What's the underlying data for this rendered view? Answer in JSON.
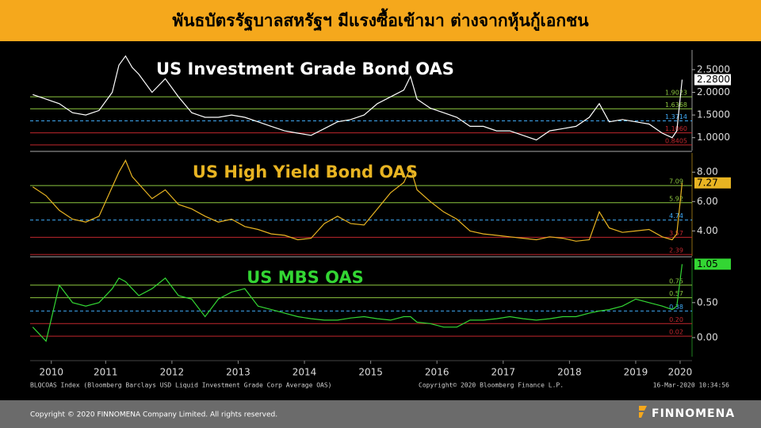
{
  "header": {
    "title": "พันธบัตรรัฐบาลสหรัฐฯ มีแรงซื้อเข้ามา ต่างจากหุ้นกู้เอกชน"
  },
  "chart_data": [
    {
      "type": "line",
      "title": "US Investment Grade Bond OAS",
      "color": "#ffffff",
      "x": [
        2010.4,
        2010.6,
        2010.8,
        2011.0,
        2011.2,
        2011.4,
        2011.6,
        2011.7,
        2011.8,
        2011.9,
        2012.0,
        2012.2,
        2012.4,
        2012.6,
        2012.8,
        2013.0,
        2013.2,
        2013.4,
        2013.6,
        2013.8,
        2014.0,
        2014.2,
        2014.4,
        2014.6,
        2014.8,
        2015.0,
        2015.2,
        2015.4,
        2015.6,
        2015.8,
        2016.0,
        2016.1,
        2016.2,
        2016.4,
        2016.6,
        2016.8,
        2017.0,
        2017.2,
        2017.4,
        2017.6,
        2017.8,
        2018.0,
        2018.2,
        2018.4,
        2018.6,
        2018.8,
        2018.95,
        2019.1,
        2019.3,
        2019.5,
        2019.7,
        2019.9,
        2020.05,
        2020.12,
        2020.2
      ],
      "values": [
        1.95,
        1.85,
        1.75,
        1.55,
        1.5,
        1.6,
        2.0,
        2.6,
        2.8,
        2.55,
        2.4,
        2.0,
        2.3,
        1.9,
        1.55,
        1.45,
        1.45,
        1.5,
        1.45,
        1.35,
        1.25,
        1.15,
        1.1,
        1.05,
        1.2,
        1.35,
        1.4,
        1.5,
        1.75,
        1.9,
        2.05,
        2.35,
        1.85,
        1.65,
        1.55,
        1.45,
        1.25,
        1.25,
        1.15,
        1.15,
        1.05,
        0.95,
        1.15,
        1.2,
        1.25,
        1.45,
        1.75,
        1.35,
        1.4,
        1.35,
        1.3,
        1.1,
        1.0,
        1.15,
        2.28
      ],
      "xlim": [
        2010.36,
        2020.35
      ],
      "ylim": [
        0.75,
        2.9
      ],
      "yticks": [
        {
          "value": 1.0,
          "label": "1.0000"
        },
        {
          "value": 1.5,
          "label": "1.5000"
        },
        {
          "value": 2.0,
          "label": "2.0000"
        },
        {
          "value": 2.5,
          "label": "2.5000"
        }
      ],
      "levels": [
        {
          "value": 1.9023,
          "label": "1.9023",
          "color": "#8cc63f"
        },
        {
          "value": 1.6368,
          "label": "1.6368",
          "color": "#8cc63f"
        },
        {
          "value": 1.3714,
          "label": "1.3714",
          "color": "#3fa9f5",
          "style": "dashed"
        },
        {
          "value": 1.106,
          "label": "1.1060",
          "color": "#c1272d"
        },
        {
          "value": 0.8405,
          "label": "0.8405",
          "color": "#c1272d"
        }
      ],
      "current": {
        "value": 2.28,
        "label": "2.2800"
      }
    },
    {
      "type": "line",
      "title": "US High Yield Bond OAS",
      "color": "#e8b422",
      "x": [
        2010.4,
        2010.6,
        2010.8,
        2011.0,
        2011.2,
        2011.4,
        2011.6,
        2011.7,
        2011.8,
        2011.9,
        2012.0,
        2012.2,
        2012.4,
        2012.6,
        2012.8,
        2013.0,
        2013.2,
        2013.4,
        2013.6,
        2013.8,
        2014.0,
        2014.2,
        2014.4,
        2014.6,
        2014.8,
        2015.0,
        2015.2,
        2015.4,
        2015.6,
        2015.8,
        2016.0,
        2016.1,
        2016.2,
        2016.4,
        2016.6,
        2016.8,
        2017.0,
        2017.2,
        2017.4,
        2017.6,
        2017.8,
        2018.0,
        2018.2,
        2018.4,
        2018.6,
        2018.8,
        2018.95,
        2019.1,
        2019.3,
        2019.5,
        2019.7,
        2019.9,
        2020.05,
        2020.12,
        2020.2
      ],
      "values": [
        7.0,
        6.4,
        5.4,
        4.8,
        4.6,
        5.0,
        7.0,
        8.0,
        8.8,
        7.7,
        7.2,
        6.2,
        6.8,
        5.8,
        5.5,
        5.0,
        4.6,
        4.8,
        4.3,
        4.1,
        3.8,
        3.7,
        3.4,
        3.5,
        4.5,
        5.0,
        4.5,
        4.4,
        5.5,
        6.6,
        7.3,
        8.3,
        6.8,
        6.0,
        5.3,
        4.8,
        4.0,
        3.8,
        3.7,
        3.6,
        3.5,
        3.4,
        3.6,
        3.5,
        3.3,
        3.4,
        5.3,
        4.2,
        3.9,
        4.0,
        4.1,
        3.6,
        3.4,
        3.8,
        7.27
      ],
      "xlim": [
        2010.36,
        2020.35
      ],
      "ylim": [
        2.4,
        9.2
      ],
      "yticks": [
        {
          "value": 4,
          "label": "4.00"
        },
        {
          "value": 6,
          "label": "6.00"
        },
        {
          "value": 8,
          "label": "8.00"
        }
      ],
      "levels": [
        {
          "value": 7.09,
          "label": "7.09",
          "color": "#8cc63f"
        },
        {
          "value": 5.92,
          "label": "5.92",
          "color": "#8cc63f"
        },
        {
          "value": 4.74,
          "label": "4.74",
          "color": "#3fa9f5",
          "style": "dashed"
        },
        {
          "value": 3.57,
          "label": "3.57",
          "color": "#c1272d"
        },
        {
          "value": 2.39,
          "label": "2.39",
          "color": "#c1272d"
        }
      ],
      "current": {
        "value": 7.27,
        "label": "7.27"
      }
    },
    {
      "type": "line",
      "title": "US MBS OAS",
      "color": "#33d633",
      "x": [
        2010.4,
        2010.6,
        2010.8,
        2011.0,
        2011.2,
        2011.4,
        2011.6,
        2011.7,
        2011.8,
        2011.9,
        2012.0,
        2012.2,
        2012.4,
        2012.6,
        2012.8,
        2013.0,
        2013.2,
        2013.4,
        2013.6,
        2013.8,
        2014.0,
        2014.2,
        2014.4,
        2014.6,
        2014.8,
        2015.0,
        2015.2,
        2015.4,
        2015.6,
        2015.8,
        2016.0,
        2016.1,
        2016.2,
        2016.4,
        2016.6,
        2016.8,
        2017.0,
        2017.2,
        2017.4,
        2017.6,
        2017.8,
        2018.0,
        2018.2,
        2018.4,
        2018.6,
        2018.8,
        2018.95,
        2019.1,
        2019.3,
        2019.5,
        2019.7,
        2019.9,
        2020.05,
        2020.12,
        2020.2
      ],
      "values": [
        0.15,
        -0.05,
        0.75,
        0.5,
        0.45,
        0.5,
        0.7,
        0.85,
        0.8,
        0.7,
        0.6,
        0.7,
        0.85,
        0.6,
        0.55,
        0.3,
        0.55,
        0.65,
        0.7,
        0.45,
        0.4,
        0.35,
        0.3,
        0.27,
        0.25,
        0.25,
        0.28,
        0.3,
        0.27,
        0.25,
        0.3,
        0.3,
        0.22,
        0.2,
        0.15,
        0.15,
        0.25,
        0.25,
        0.27,
        0.3,
        0.27,
        0.25,
        0.27,
        0.3,
        0.3,
        0.35,
        0.38,
        0.4,
        0.45,
        0.55,
        0.5,
        0.45,
        0.4,
        0.45,
        1.05
      ],
      "xlim": [
        2010.36,
        2020.35
      ],
      "ylim": [
        -0.25,
        1.11
      ],
      "yticks": [
        {
          "value": 0,
          "label": "0.00"
        },
        {
          "value": 0.5,
          "label": "0.50"
        }
      ],
      "levels": [
        {
          "value": 0.75,
          "label": "0.75",
          "color": "#8cc63f"
        },
        {
          "value": 0.57,
          "label": "0.57",
          "color": "#8cc63f"
        },
        {
          "value": 0.38,
          "label": "0.38",
          "color": "#3fa9f5",
          "style": "dashed"
        },
        {
          "value": 0.2,
          "label": "0.20",
          "color": "#c1272d"
        },
        {
          "value": 0.02,
          "label": "0.02",
          "color": "#c1272d"
        }
      ],
      "current": {
        "value": 1.05,
        "label": "1.05"
      },
      "xticks": [
        {
          "value": 2010.68,
          "label": "2010"
        },
        {
          "value": 2011.5,
          "label": "2011"
        },
        {
          "value": 2012.5,
          "label": "2012"
        },
        {
          "value": 2013.5,
          "label": "2013"
        },
        {
          "value": 2014.5,
          "label": "2014"
        },
        {
          "value": 2015.5,
          "label": "2015"
        },
        {
          "value": 2016.5,
          "label": "2016"
        },
        {
          "value": 2017.5,
          "label": "2017"
        },
        {
          "value": 2018.5,
          "label": "2018"
        },
        {
          "value": 2019.5,
          "label": "2019"
        },
        {
          "value": 2020.17,
          "label": "2020"
        }
      ]
    }
  ],
  "source": {
    "index": "BLQCOAS Index (Bloomberg Barclays USD Liquid Investment Grade Corp Average OAS)",
    "copyright": "Copyright© 2020 Bloomberg Finance L.P.",
    "timestamp": "16-Mar-2020 10:34:56"
  },
  "footer": {
    "copyright": "Copyright © 2020 FINNOMENA Company Limited. All rights reserved.",
    "brand": "FINNOMENA"
  }
}
